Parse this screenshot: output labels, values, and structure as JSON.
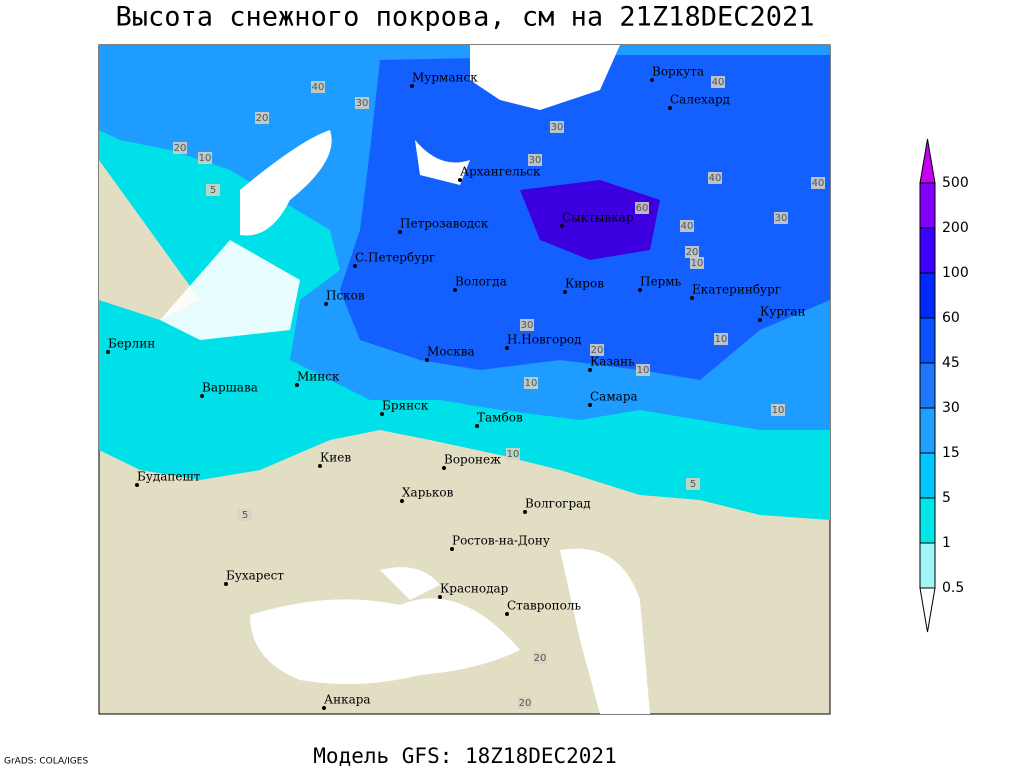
{
  "header": {
    "title": "Высота снежного покрова, см на 21Z18DEC2021"
  },
  "footer": {
    "model": "Модель GFS: 18Z18DEC2021",
    "credit": "GrADS: COLA/IGES"
  },
  "legend": {
    "levels": [
      0.5,
      1,
      5,
      15,
      30,
      45,
      60,
      100,
      200,
      500
    ],
    "colors": [
      "#ffffff",
      "#a0f5f5",
      "#00e6e6",
      "#00c8ff",
      "#1ea0ff",
      "#1e78ff",
      "#0a50ff",
      "#0028ff",
      "#3c00ff",
      "#8200ff",
      "#c800f0"
    ]
  },
  "cities": [
    "Мурманск",
    "Воркута",
    "Салехард",
    "Архангельск",
    "Петрозаводск",
    "Сыктывкар",
    "С.Петербург",
    "Вологда",
    "Киров",
    "Пермь",
    "Екатеринбург",
    "Псков",
    "Курган",
    "Берлин",
    "Н.Новгород",
    "Москва",
    "Казань",
    "Минск",
    "Варшава",
    "Брянск",
    "Самара",
    "Тамбов",
    "Киев",
    "Воронеж",
    "Будапешт",
    "Харьков",
    "Волгоград",
    "Ростов-на-Дону",
    "Бухарест",
    "Краснодар",
    "Ставрополь",
    "Анкара"
  ],
  "contour_labels": [
    "40",
    "40",
    "30",
    "30",
    "20",
    "20",
    "10",
    "5",
    "30",
    "40",
    "40",
    "30",
    "60",
    "40",
    "20",
    "10",
    "30",
    "10",
    "20",
    "10",
    "10",
    "5",
    "10",
    "10",
    "5",
    "20",
    "20"
  ]
}
